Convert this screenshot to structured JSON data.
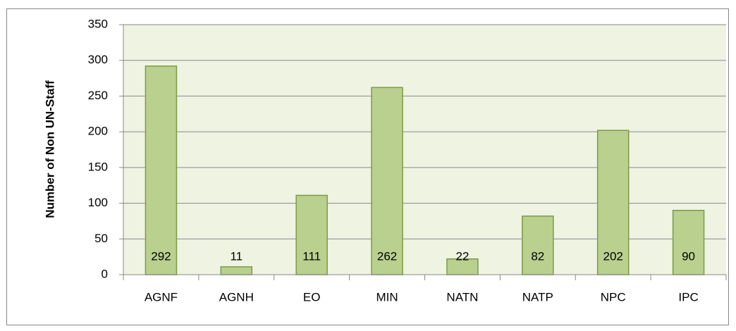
{
  "chart_data": {
    "type": "bar",
    "y_label": "Number of Non UN-Staff",
    "categories": [
      "AGNF",
      "AGNH",
      "EO",
      "MIN",
      "NATN",
      "NATP",
      "NPC",
      "IPC"
    ],
    "values": [
      292,
      11,
      111,
      262,
      22,
      82,
      202,
      90
    ],
    "color": "#b9d08f",
    "ylim": [
      0,
      350
    ],
    "yticks": [
      0,
      50,
      100,
      150,
      200,
      250,
      300,
      350
    ],
    "grid": true
  }
}
